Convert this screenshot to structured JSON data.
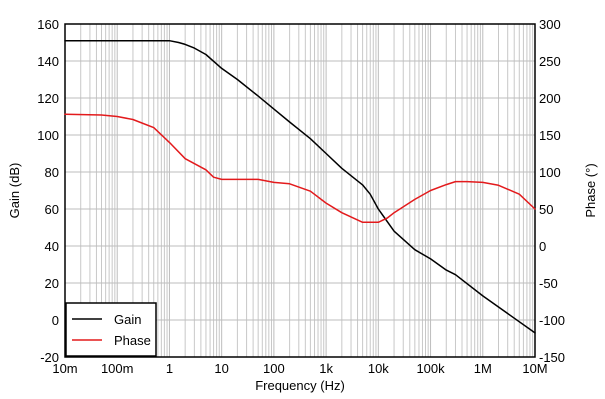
{
  "chart_data": {
    "type": "line",
    "xlabel": "Frequency (Hz)",
    "ylabel": "Gain (dB)",
    "y2label": "Phase (°)",
    "x_scale": "log",
    "xlim": [
      0.01,
      10000000
    ],
    "ylim": [
      -20,
      160
    ],
    "y2lim": [
      -150,
      300
    ],
    "x_ticks": [
      0.01,
      0.1,
      1,
      10,
      100,
      1000,
      10000,
      100000,
      1000000,
      10000000
    ],
    "x_tick_labels": [
      "10m",
      "100m",
      "1",
      "10",
      "100",
      "1k",
      "10k",
      "100k",
      "1M",
      "10M"
    ],
    "y_ticks": [
      -20,
      0,
      20,
      40,
      60,
      80,
      100,
      120,
      140,
      160
    ],
    "y_tick_labels": [
      "-20",
      "0",
      "20",
      "40",
      "60",
      "80",
      "100",
      "120",
      "140",
      "160"
    ],
    "y2_ticks": [
      -150,
      -100,
      -50,
      0,
      50,
      100,
      150,
      200,
      250,
      300
    ],
    "y2_tick_labels": [
      "-150",
      "-100",
      "-50",
      "0",
      "50",
      "100",
      "150",
      "200",
      "250",
      "300"
    ],
    "grid": true,
    "legend_position": "bottom-left",
    "series": [
      {
        "name": "Gain",
        "axis": "left",
        "color": "#000000",
        "x": [
          0.01,
          0.1,
          1,
          1.5,
          2,
          3,
          5,
          10,
          20,
          50,
          100,
          200,
          500,
          1000,
          2000,
          5000,
          7000,
          10000,
          20000,
          50000,
          100000,
          200000,
          300000,
          1000000,
          10000000
        ],
        "y": [
          151,
          151,
          151,
          150,
          149,
          147,
          143.5,
          136,
          130,
          121,
          114,
          107,
          98,
          90,
          82,
          73,
          68,
          60,
          48,
          38,
          33,
          27,
          24.5,
          13,
          -7
        ]
      },
      {
        "name": "Phase",
        "axis": "right",
        "color": "#e31a1c",
        "x": [
          0.01,
          0.05,
          0.1,
          0.2,
          0.5,
          1,
          2,
          5,
          7,
          10,
          20,
          50,
          100,
          200,
          500,
          1000,
          2000,
          5000,
          10000,
          15000,
          20000,
          50000,
          100000,
          200000,
          300000,
          500000,
          1000000,
          2000000,
          5000000,
          10000000
        ],
        "y": [
          178,
          177,
          175,
          171,
          160,
          140,
          118,
          103,
          93,
          90,
          90,
          90,
          86,
          84,
          74,
          58,
          45,
          32,
          32,
          38,
          45,
          63,
          75,
          83,
          87,
          87,
          86,
          82,
          70,
          50
        ]
      }
    ]
  }
}
